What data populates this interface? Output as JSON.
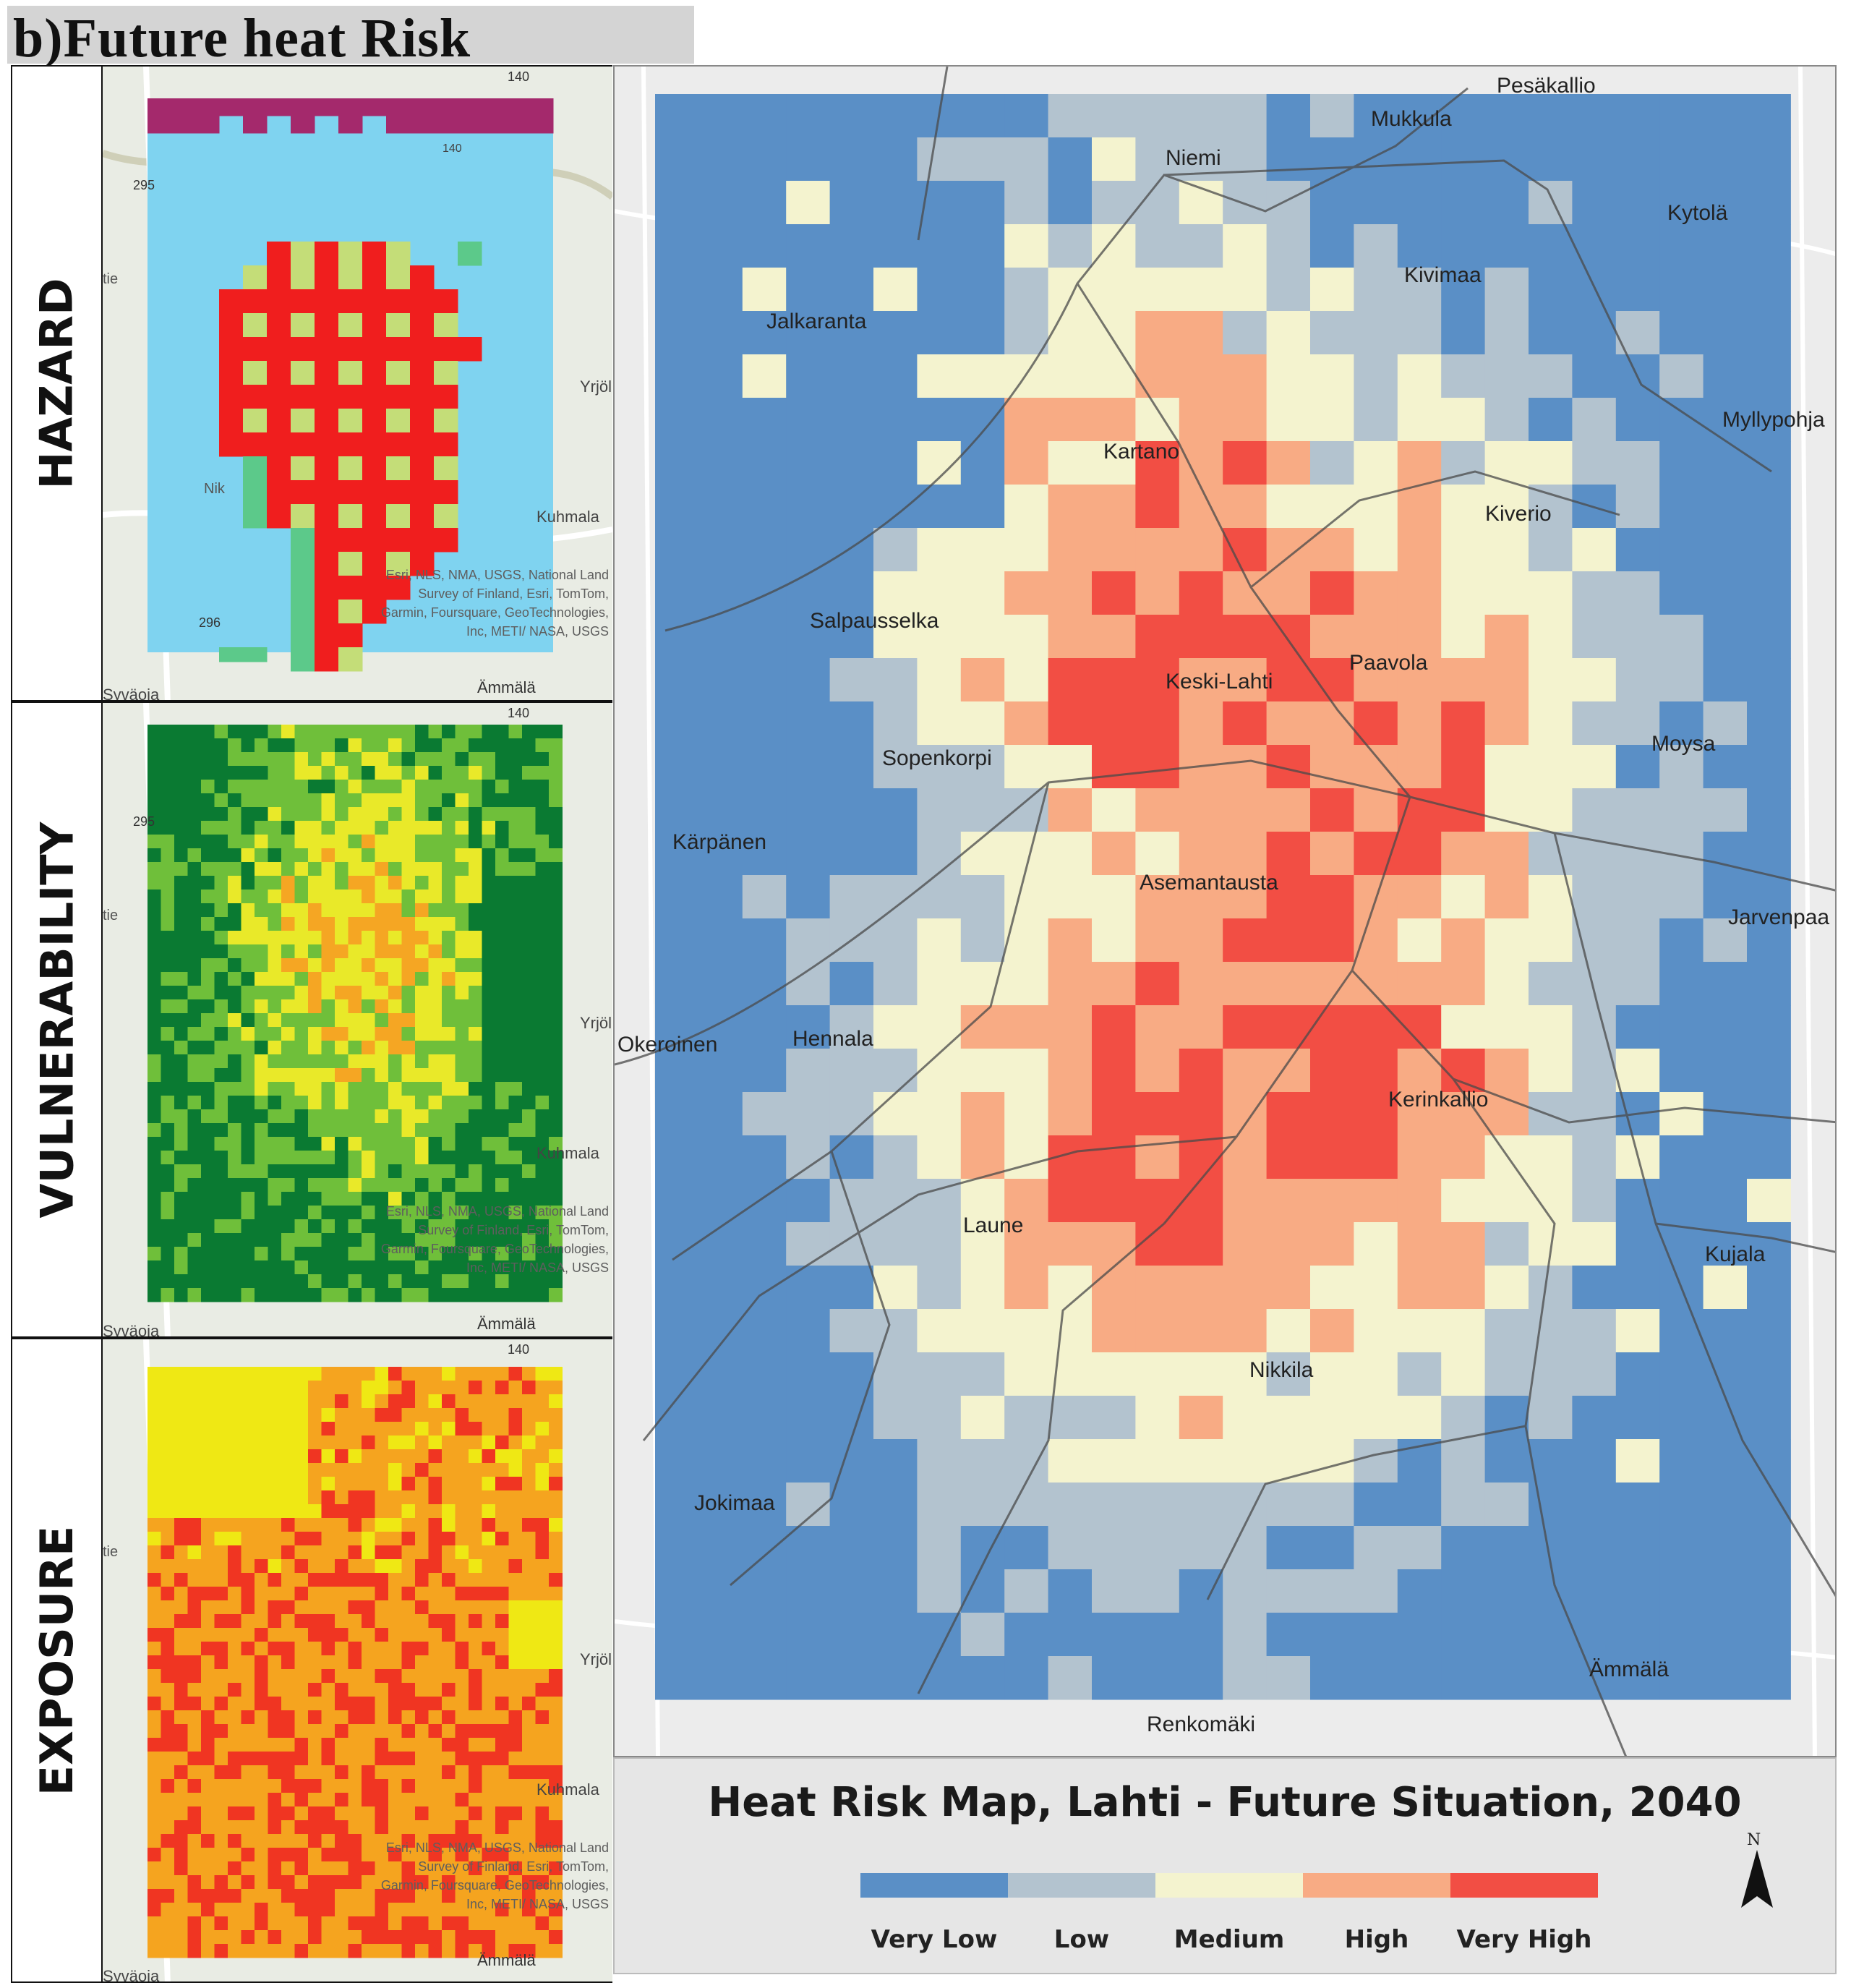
{
  "figure": {
    "panel_title": "b)Future heat Risk"
  },
  "side_panels": [
    {
      "label": "HAZARD"
    },
    {
      "label": "VULNERABILITY"
    },
    {
      "label": "EXPOSURE"
    }
  ],
  "side_map_labels": {
    "hazard": [
      "140",
      "140",
      "295",
      "Yrjöl",
      "Kuhmala",
      "296",
      "Syväoja",
      "Ämmälä",
      "tie",
      "Nik"
    ],
    "vulnerability": [
      "295",
      "Yrjöl",
      "Kuhmala",
      "Syväoja",
      "Ämmälä",
      "tie",
      "140"
    ],
    "exposure": [
      "140",
      "Yrjöl",
      "Kuhmala",
      "Syväoja",
      "Ämmälä",
      "tie"
    ]
  },
  "attribution": "Esri, NLS, NMA, USGS, National Land Survey of Finland, Esri, TomTom, Garmin, Foursquare, GeoTechnologies, Inc, METI/ NASA, USGS",
  "main_map": {
    "place_labels": [
      {
        "name": "Pesäkallio"
      },
      {
        "name": "Mukkula"
      },
      {
        "name": "Niemi"
      },
      {
        "name": "Kytolä"
      },
      {
        "name": "Kivimaa"
      },
      {
        "name": "Jalkaranta"
      },
      {
        "name": "Myllypohja"
      },
      {
        "name": "Kartano"
      },
      {
        "name": "Kiverio"
      },
      {
        "name": "Salpausselka"
      },
      {
        "name": "Keski-Lahti"
      },
      {
        "name": "Paavola"
      },
      {
        "name": "Sopenkorpi"
      },
      {
        "name": "Moysa"
      },
      {
        "name": "Kärpänen"
      },
      {
        "name": "Asemantausta"
      },
      {
        "name": "Jarvenpaa"
      },
      {
        "name": "Okeroinen"
      },
      {
        "name": "Hennala"
      },
      {
        "name": "Kerinkallio"
      },
      {
        "name": "Laune"
      },
      {
        "name": "Kujala"
      },
      {
        "name": "Nikkila"
      },
      {
        "name": "Jokimaa"
      },
      {
        "name": "Ämmälä"
      },
      {
        "name": "Renkomäki"
      }
    ]
  },
  "legend": {
    "title": "Heat Risk Map, Lahti - Future Situation, 2040",
    "north_label": "N",
    "classes": [
      {
        "label": "Very Low",
        "color": "#5a8fc6"
      },
      {
        "label": "Low",
        "color": "#b3c3cf"
      },
      {
        "label": "Medium",
        "color": "#f4f3cf"
      },
      {
        "label": "High",
        "color": "#f8ab84"
      },
      {
        "label": "Very High",
        "color": "#f24e44"
      }
    ]
  },
  "colors": {
    "hazard_very_high": "#f01e1e",
    "hazard_high": "#c4dd78",
    "hazard_moderate": "#5cc98a",
    "hazard_low": "#7fd3f0",
    "hazard_extreme": "#a4296c",
    "vuln_very_low": "#0a7a32",
    "vuln_low": "#6fbf3a",
    "vuln_medium": "#e9e929",
    "vuln_high": "#f5a623",
    "vuln_very_high": "#f24333",
    "exp_medium": "#efe814",
    "exp_high": "#f5a41f",
    "exp_very_high": "#f03522"
  }
}
